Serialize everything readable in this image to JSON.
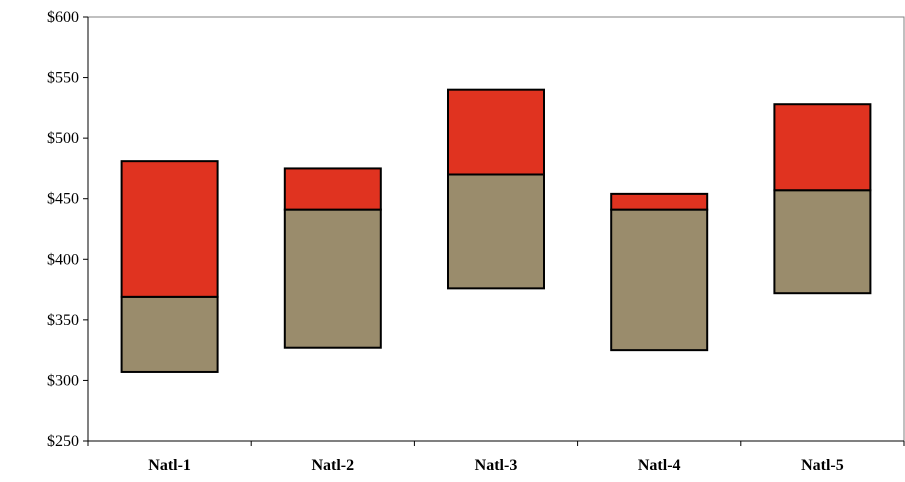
{
  "chart_data": {
    "type": "bar",
    "subtype": "floating-stacked",
    "categories": [
      "Natl-1",
      "Natl-2",
      "Natl-3",
      "Natl-4",
      "Natl-5"
    ],
    "series": [
      {
        "color": "#9a8c6c",
        "low": [
          307,
          327,
          376,
          325,
          372
        ],
        "high": [
          369,
          441,
          470,
          441,
          457
        ]
      },
      {
        "color": "#e03320",
        "low": [
          369,
          441,
          470,
          441,
          457
        ],
        "high": [
          481,
          475,
          540,
          454,
          528
        ]
      }
    ],
    "ylim": [
      250,
      600
    ],
    "yticks": [
      250,
      300,
      350,
      400,
      450,
      500,
      550,
      600
    ],
    "ytick_labels": [
      "$250",
      "$300",
      "$350",
      "$400",
      "$450",
      "$500",
      "$550",
      "$600"
    ],
    "title": "",
    "xlabel": "",
    "ylabel": "",
    "grid": false,
    "legend": "none"
  }
}
